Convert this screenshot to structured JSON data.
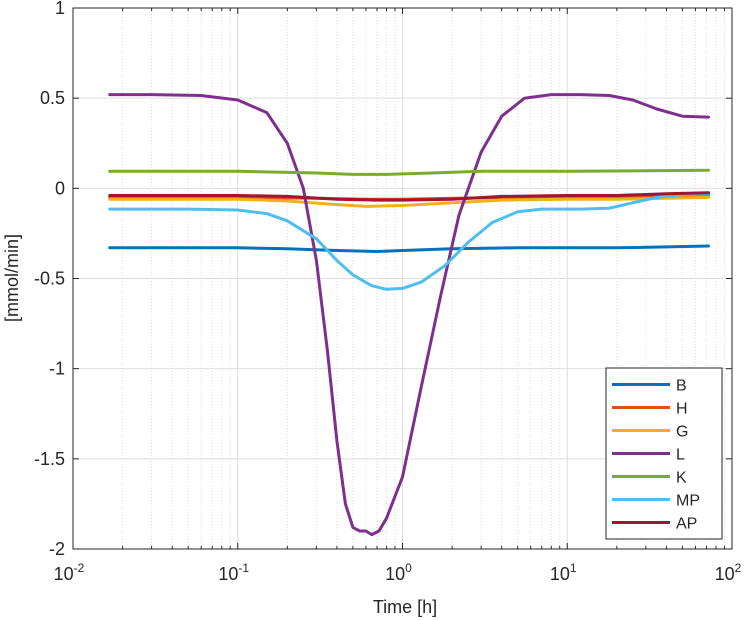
{
  "chart_data": {
    "type": "line",
    "xscale": "log",
    "xlabel": "Time [h]",
    "ylabel": "[mmol/min]",
    "xlim": [
      0.01,
      100
    ],
    "ylim": [
      -2,
      1
    ],
    "grid": "on",
    "legend_location": "bottom-right",
    "x_ticks": [
      {
        "base": "10",
        "exp": "-2"
      },
      {
        "base": "10",
        "exp": "-1"
      },
      {
        "base": "10",
        "exp": "0"
      },
      {
        "base": "10",
        "exp": "1"
      },
      {
        "base": "10",
        "exp": "2"
      }
    ],
    "y_ticks": [
      "1",
      "0.5",
      "0",
      "-0.5",
      "-1",
      "-1.5",
      "-2"
    ],
    "y_tick_values": [
      1,
      0.5,
      0,
      -0.5,
      -1,
      -1.5,
      -2
    ],
    "series": [
      {
        "name": "B",
        "color": "#0072BD",
        "points": [
          [
            0.0167,
            -0.33
          ],
          [
            0.05,
            -0.33
          ],
          [
            0.1,
            -0.33
          ],
          [
            0.2,
            -0.335
          ],
          [
            0.4,
            -0.345
          ],
          [
            0.7,
            -0.35
          ],
          [
            1,
            -0.345
          ],
          [
            2,
            -0.335
          ],
          [
            5,
            -0.33
          ],
          [
            10,
            -0.33
          ],
          [
            20,
            -0.33
          ],
          [
            40,
            -0.325
          ],
          [
            72,
            -0.32
          ]
        ]
      },
      {
        "name": "H",
        "color": "#D95319",
        "points": [
          [
            0.0167,
            -0.05
          ],
          [
            0.1,
            -0.05
          ],
          [
            0.3,
            -0.055
          ],
          [
            0.6,
            -0.06
          ],
          [
            1,
            -0.06
          ],
          [
            2,
            -0.055
          ],
          [
            5,
            -0.05
          ],
          [
            10,
            -0.05
          ],
          [
            20,
            -0.05
          ],
          [
            40,
            -0.045
          ],
          [
            72,
            -0.04
          ]
        ]
      },
      {
        "name": "G",
        "color": "#EDB120",
        "points": [
          [
            0.0167,
            -0.06
          ],
          [
            0.1,
            -0.06
          ],
          [
            0.2,
            -0.07
          ],
          [
            0.4,
            -0.09
          ],
          [
            0.6,
            -0.1
          ],
          [
            1,
            -0.095
          ],
          [
            2,
            -0.08
          ],
          [
            4,
            -0.065
          ],
          [
            10,
            -0.06
          ],
          [
            20,
            -0.06
          ],
          [
            40,
            -0.055
          ],
          [
            72,
            -0.05
          ]
        ]
      },
      {
        "name": "L",
        "color": "#7E2F8E",
        "points": [
          [
            0.0167,
            0.52
          ],
          [
            0.03,
            0.52
          ],
          [
            0.06,
            0.515
          ],
          [
            0.1,
            0.49
          ],
          [
            0.15,
            0.42
          ],
          [
            0.2,
            0.25
          ],
          [
            0.25,
            0.0
          ],
          [
            0.3,
            -0.4
          ],
          [
            0.35,
            -0.9
          ],
          [
            0.4,
            -1.4
          ],
          [
            0.45,
            -1.75
          ],
          [
            0.5,
            -1.88
          ],
          [
            0.55,
            -1.9
          ],
          [
            0.6,
            -1.9
          ],
          [
            0.65,
            -1.92
          ],
          [
            0.72,
            -1.9
          ],
          [
            0.8,
            -1.83
          ],
          [
            1.0,
            -1.6
          ],
          [
            1.3,
            -1.1
          ],
          [
            1.7,
            -0.6
          ],
          [
            2.2,
            -0.15
          ],
          [
            3,
            0.2
          ],
          [
            4,
            0.4
          ],
          [
            5.5,
            0.5
          ],
          [
            8,
            0.52
          ],
          [
            12,
            0.52
          ],
          [
            18,
            0.515
          ],
          [
            25,
            0.49
          ],
          [
            35,
            0.44
          ],
          [
            50,
            0.4
          ],
          [
            72,
            0.395
          ]
        ]
      },
      {
        "name": "K",
        "color": "#77AC30",
        "points": [
          [
            0.0167,
            0.095
          ],
          [
            0.1,
            0.095
          ],
          [
            0.3,
            0.085
          ],
          [
            0.5,
            0.077
          ],
          [
            0.8,
            0.077
          ],
          [
            1.5,
            0.085
          ],
          [
            3,
            0.095
          ],
          [
            10,
            0.095
          ],
          [
            30,
            0.097
          ],
          [
            72,
            0.1
          ]
        ]
      },
      {
        "name": "MP",
        "color": "#4DBEEE",
        "points": [
          [
            0.0167,
            -0.115
          ],
          [
            0.05,
            -0.115
          ],
          [
            0.1,
            -0.12
          ],
          [
            0.15,
            -0.14
          ],
          [
            0.2,
            -0.18
          ],
          [
            0.3,
            -0.28
          ],
          [
            0.4,
            -0.4
          ],
          [
            0.5,
            -0.48
          ],
          [
            0.65,
            -0.54
          ],
          [
            0.8,
            -0.56
          ],
          [
            1,
            -0.555
          ],
          [
            1.3,
            -0.52
          ],
          [
            1.8,
            -0.43
          ],
          [
            2.5,
            -0.3
          ],
          [
            3.5,
            -0.19
          ],
          [
            5,
            -0.13
          ],
          [
            7,
            -0.115
          ],
          [
            12,
            -0.115
          ],
          [
            18,
            -0.11
          ],
          [
            25,
            -0.08
          ],
          [
            35,
            -0.05
          ],
          [
            50,
            -0.035
          ],
          [
            72,
            -0.03
          ]
        ]
      },
      {
        "name": "AP",
        "color": "#A2142F",
        "points": [
          [
            0.0167,
            -0.04
          ],
          [
            0.1,
            -0.04
          ],
          [
            0.2,
            -0.045
          ],
          [
            0.4,
            -0.06
          ],
          [
            0.7,
            -0.065
          ],
          [
            1,
            -0.065
          ],
          [
            2,
            -0.06
          ],
          [
            4,
            -0.045
          ],
          [
            10,
            -0.04
          ],
          [
            20,
            -0.04
          ],
          [
            40,
            -0.03
          ],
          [
            72,
            -0.025
          ]
        ]
      }
    ]
  }
}
